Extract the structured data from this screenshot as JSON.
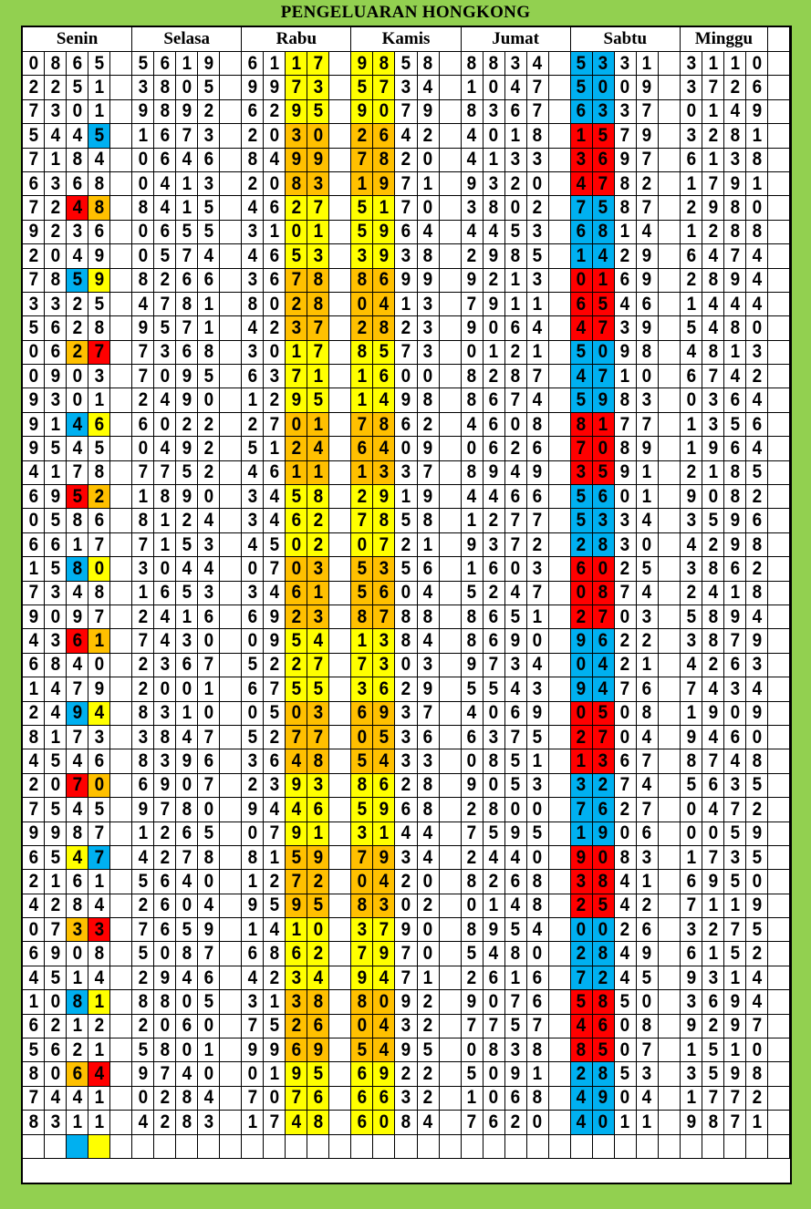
{
  "title": "PENGELUARAN HONGKONG",
  "days": [
    "Senin",
    "Selasa",
    "Rabu",
    "Kamis",
    "Jumat",
    "Sabtu",
    "Minggu"
  ],
  "colors": {
    "yellow": "#ffff00",
    "orange": "#ffc000",
    "blue": "#00b0f0",
    "red": "#ff0000",
    "background": "#92d050"
  },
  "rows": [
    {
      "values": [
        "0865",
        "5619",
        "6117",
        "9858",
        "8834",
        "5331",
        "3110"
      ],
      "senin_colors": [
        "",
        ""
      ],
      "rabu_kamis_color": "yellow",
      "sabtu_color": "blue"
    },
    {
      "values": [
        "2251",
        "3805",
        "9973",
        "5734",
        "1047",
        "5009",
        "3726"
      ],
      "senin_colors": [
        "",
        ""
      ],
      "rabu_kamis_color": "yellow",
      "sabtu_color": "blue"
    },
    {
      "values": [
        "7301",
        "9892",
        "6295",
        "9079",
        "8367",
        "6337",
        "0149"
      ],
      "senin_colors": [
        "",
        ""
      ],
      "rabu_kamis_color": "yellow",
      "sabtu_color": "blue"
    },
    {
      "values": [
        "5445",
        "1673",
        "2030",
        "2642",
        "4018",
        "1579",
        "3281"
      ],
      "senin_colors": [
        "",
        "blue"
      ],
      "rabu_kamis_color": "orange",
      "sabtu_color": "red"
    },
    {
      "values": [
        "7184",
        "0646",
        "8499",
        "7820",
        "4133",
        "3697",
        "6138"
      ],
      "senin_colors": [
        "",
        ""
      ],
      "rabu_kamis_color": "orange",
      "sabtu_color": "red"
    },
    {
      "values": [
        "6368",
        "0413",
        "2083",
        "1971",
        "9320",
        "4782",
        "1791"
      ],
      "senin_colors": [
        "",
        ""
      ],
      "rabu_kamis_color": "orange",
      "sabtu_color": "red"
    },
    {
      "values": [
        "7248",
        "8415",
        "4627",
        "5170",
        "3802",
        "7587",
        "2980"
      ],
      "senin_colors": [
        "red",
        "orange"
      ],
      "rabu_kamis_color": "yellow",
      "sabtu_color": "blue"
    },
    {
      "values": [
        "9236",
        "0655",
        "3101",
        "5964",
        "4453",
        "6814",
        "1288"
      ],
      "senin_colors": [
        "",
        ""
      ],
      "rabu_kamis_color": "yellow",
      "sabtu_color": "blue"
    },
    {
      "values": [
        "2049",
        "0574",
        "4653",
        "3938",
        "2985",
        "1429",
        "6474"
      ],
      "senin_colors": [
        "",
        ""
      ],
      "rabu_kamis_color": "yellow",
      "sabtu_color": "blue"
    },
    {
      "values": [
        "7859",
        "8266",
        "3678",
        "8699",
        "9213",
        "0169",
        "2894"
      ],
      "senin_colors": [
        "blue",
        "yellow"
      ],
      "rabu_kamis_color": "orange",
      "sabtu_color": "red"
    },
    {
      "values": [
        "3325",
        "4781",
        "8028",
        "0413",
        "7911",
        "6546",
        "1444"
      ],
      "senin_colors": [
        "",
        ""
      ],
      "rabu_kamis_color": "orange",
      "sabtu_color": "red"
    },
    {
      "values": [
        "5628",
        "9571",
        "4237",
        "2823",
        "9064",
        "4739",
        "5480"
      ],
      "senin_colors": [
        "",
        ""
      ],
      "rabu_kamis_color": "orange",
      "sabtu_color": "red"
    },
    {
      "values": [
        "0627",
        "7368",
        "3017",
        "8573",
        "0121",
        "5098",
        "4813"
      ],
      "senin_colors": [
        "orange",
        "red"
      ],
      "rabu_kamis_color": "yellow",
      "sabtu_color": "blue"
    },
    {
      "values": [
        "0903",
        "7095",
        "6371",
        "1600",
        "8287",
        "4710",
        "6742"
      ],
      "senin_colors": [
        "",
        ""
      ],
      "rabu_kamis_color": "yellow",
      "sabtu_color": "blue"
    },
    {
      "values": [
        "9301",
        "2490",
        "1295",
        "1498",
        "8674",
        "5983",
        "0364"
      ],
      "senin_colors": [
        "",
        ""
      ],
      "rabu_kamis_color": "yellow",
      "sabtu_color": "blue"
    },
    {
      "values": [
        "9146",
        "6022",
        "2701",
        "7862",
        "4608",
        "8177",
        "1356"
      ],
      "senin_colors": [
        "blue",
        "yellow"
      ],
      "rabu_kamis_color": "orange",
      "sabtu_color": "red"
    },
    {
      "values": [
        "9545",
        "0492",
        "5124",
        "6409",
        "0626",
        "7089",
        "1964"
      ],
      "senin_colors": [
        "",
        ""
      ],
      "rabu_kamis_color": "orange",
      "sabtu_color": "red"
    },
    {
      "values": [
        "4178",
        "7752",
        "4611",
        "1337",
        "8949",
        "3591",
        "2185"
      ],
      "senin_colors": [
        "",
        ""
      ],
      "rabu_kamis_color": "orange",
      "sabtu_color": "red"
    },
    {
      "values": [
        "6952",
        "1890",
        "3458",
        "2919",
        "4466",
        "5601",
        "9082"
      ],
      "senin_colors": [
        "red",
        "orange"
      ],
      "rabu_kamis_color": "yellow",
      "sabtu_color": "blue"
    },
    {
      "values": [
        "0586",
        "8124",
        "3462",
        "7858",
        "1277",
        "5334",
        "3596"
      ],
      "senin_colors": [
        "",
        ""
      ],
      "rabu_kamis_color": "yellow",
      "sabtu_color": "blue"
    },
    {
      "values": [
        "6617",
        "7153",
        "4502",
        "0721",
        "9372",
        "2830",
        "4298"
      ],
      "senin_colors": [
        "",
        ""
      ],
      "rabu_kamis_color": "yellow",
      "sabtu_color": "blue"
    },
    {
      "values": [
        "1580",
        "3044",
        "0703",
        "5356",
        "1603",
        "6025",
        "3862"
      ],
      "senin_colors": [
        "blue",
        "yellow"
      ],
      "rabu_kamis_color": "orange",
      "sabtu_color": "red"
    },
    {
      "values": [
        "7348",
        "1653",
        "3461",
        "5604",
        "5247",
        "0874",
        "2418"
      ],
      "senin_colors": [
        "",
        ""
      ],
      "rabu_kamis_color": "orange",
      "sabtu_color": "red"
    },
    {
      "values": [
        "9097",
        "2416",
        "6923",
        "8788",
        "8651",
        "2703",
        "5894"
      ],
      "senin_colors": [
        "",
        ""
      ],
      "rabu_kamis_color": "orange",
      "sabtu_color": "red"
    },
    {
      "values": [
        "4361",
        "7430",
        "0954",
        "1384",
        "8690",
        "9622",
        "3879"
      ],
      "senin_colors": [
        "red",
        "orange"
      ],
      "rabu_kamis_color": "yellow",
      "sabtu_color": "blue"
    },
    {
      "values": [
        "6840",
        "2367",
        "5227",
        "7303",
        "9734",
        "0421",
        "4263"
      ],
      "senin_colors": [
        "",
        ""
      ],
      "rabu_kamis_color": "yellow",
      "sabtu_color": "blue"
    },
    {
      "values": [
        "1479",
        "2001",
        "6755",
        "3629",
        "5543",
        "9476",
        "7434"
      ],
      "senin_colors": [
        "",
        ""
      ],
      "rabu_kamis_color": "yellow",
      "sabtu_color": "blue"
    },
    {
      "values": [
        "2494",
        "8310",
        "0503",
        "6937",
        "4069",
        "0508",
        "1909"
      ],
      "senin_colors": [
        "blue",
        "yellow"
      ],
      "rabu_kamis_color": "orange",
      "sabtu_color": "red"
    },
    {
      "values": [
        "8173",
        "3847",
        "5277",
        "0536",
        "6375",
        "2704",
        "9460"
      ],
      "senin_colors": [
        "",
        ""
      ],
      "rabu_kamis_color": "orange",
      "sabtu_color": "red"
    },
    {
      "values": [
        "4546",
        "8396",
        "3648",
        "5433",
        "0851",
        "1367",
        "8748"
      ],
      "senin_colors": [
        "",
        ""
      ],
      "rabu_kamis_color": "orange",
      "sabtu_color": "red"
    },
    {
      "values": [
        "2070",
        "6907",
        "2393",
        "8628",
        "9053",
        "3274",
        "5635"
      ],
      "senin_colors": [
        "red",
        "orange"
      ],
      "rabu_kamis_color": "yellow",
      "sabtu_color": "blue"
    },
    {
      "values": [
        "7545",
        "9780",
        "9446",
        "5968",
        "2800",
        "7627",
        "0472"
      ],
      "senin_colors": [
        "",
        ""
      ],
      "rabu_kamis_color": "yellow",
      "sabtu_color": "blue"
    },
    {
      "values": [
        "9987",
        "1265",
        "0791",
        "3144",
        "7595",
        "1906",
        "0059"
      ],
      "senin_colors": [
        "",
        ""
      ],
      "rabu_kamis_color": "yellow",
      "sabtu_color": "blue"
    },
    {
      "values": [
        "6547",
        "4278",
        "8159",
        "7934",
        "2440",
        "9083",
        "1735"
      ],
      "senin_colors": [
        "yellow",
        "blue"
      ],
      "rabu_kamis_color": "orange",
      "sabtu_color": "red"
    },
    {
      "values": [
        "2161",
        "5640",
        "1272",
        "0420",
        "8268",
        "3841",
        "6950"
      ],
      "senin_colors": [
        "",
        ""
      ],
      "rabu_kamis_color": "orange",
      "sabtu_color": "red"
    },
    {
      "values": [
        "4284",
        "2604",
        "9595",
        "8302",
        "0148",
        "2542",
        "7119"
      ],
      "senin_colors": [
        "",
        ""
      ],
      "rabu_kamis_color": "orange",
      "sabtu_color": "red"
    },
    {
      "values": [
        "0733",
        "7659",
        "1410",
        "3790",
        "8954",
        "0026",
        "3275"
      ],
      "senin_colors": [
        "orange",
        "red"
      ],
      "rabu_kamis_color": "yellow",
      "sabtu_color": "blue"
    },
    {
      "values": [
        "6908",
        "5087",
        "6862",
        "7970",
        "5480",
        "2849",
        "6152"
      ],
      "senin_colors": [
        "",
        ""
      ],
      "rabu_kamis_color": "yellow",
      "sabtu_color": "blue"
    },
    {
      "values": [
        "4514",
        "2946",
        "4234",
        "9471",
        "2616",
        "7245",
        "9314"
      ],
      "senin_colors": [
        "",
        ""
      ],
      "rabu_kamis_color": "yellow",
      "sabtu_color": "blue"
    },
    {
      "values": [
        "1081",
        "8805",
        "3138",
        "8092",
        "9076",
        "5850",
        "3694"
      ],
      "senin_colors": [
        "blue",
        "yellow"
      ],
      "rabu_kamis_color": "orange",
      "sabtu_color": "red"
    },
    {
      "values": [
        "6212",
        "2060",
        "7526",
        "0432",
        "7757",
        "4608",
        "9297"
      ],
      "senin_colors": [
        "",
        ""
      ],
      "rabu_kamis_color": "orange",
      "sabtu_color": "red"
    },
    {
      "values": [
        "5621",
        "5801",
        "9969",
        "5495",
        "0838",
        "8507",
        "1510"
      ],
      "senin_colors": [
        "",
        ""
      ],
      "rabu_kamis_color": "orange",
      "sabtu_color": "red"
    },
    {
      "values": [
        "8064",
        "9740",
        "0195",
        "6922",
        "5091",
        "2853",
        "3598"
      ],
      "senin_colors": [
        "orange",
        "red"
      ],
      "rabu_kamis_color": "yellow",
      "sabtu_color": "blue"
    },
    {
      "values": [
        "7441",
        "0284",
        "7076",
        "6632",
        "1068",
        "4904",
        "1772"
      ],
      "senin_colors": [
        "",
        ""
      ],
      "rabu_kamis_color": "yellow",
      "sabtu_color": "blue"
    },
    {
      "values": [
        "8311",
        "4283",
        "1748",
        "6084",
        "7620",
        "4011",
        "9871"
      ],
      "senin_colors": [
        "",
        ""
      ],
      "rabu_kamis_color": "yellow",
      "sabtu_color": "blue"
    },
    {
      "values": [
        "",
        "",
        "",
        "",
        "",
        "",
        ""
      ],
      "senin_colors": [
        "blue",
        "yellow"
      ],
      "rabu_kamis_color": "",
      "sabtu_color": ""
    }
  ]
}
